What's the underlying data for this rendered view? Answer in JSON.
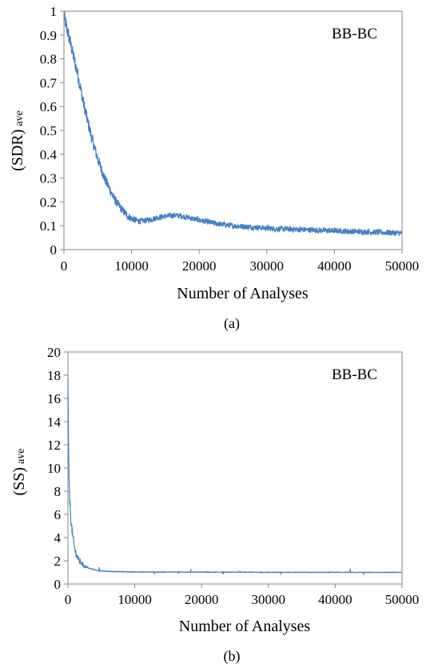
{
  "chart_data": [
    {
      "type": "line",
      "annotation": "BB-BC",
      "xlabel": "Number of Analyses",
      "ylabel_main": "(SDR)",
      "ylabel_sub": "ave",
      "caption": "(a)",
      "xlim": [
        0,
        50000
      ],
      "ylim": [
        0,
        1
      ],
      "xticks": [
        0,
        10000,
        20000,
        30000,
        40000,
        50000
      ],
      "yticks": [
        0,
        0.1,
        0.2,
        0.3,
        0.4,
        0.5,
        0.6,
        0.7,
        0.8,
        0.9,
        1
      ],
      "xtick_labels": [
        "0",
        "10000",
        "20000",
        "30000",
        "40000",
        "50000"
      ],
      "ytick_labels": [
        "0",
        "0.1",
        "0.2",
        "0.3",
        "0.4",
        "0.5",
        "0.6",
        "0.7",
        "0.8",
        "0.9",
        "1"
      ],
      "grid": false,
      "color": "#4a7ebb",
      "series": [
        {
          "x": [
            0,
            500,
            1000,
            1500,
            2000,
            2500,
            3000,
            3500,
            4000,
            4500,
            5000,
            5500,
            6000,
            6500,
            7000,
            7500,
            8000,
            8500,
            9000,
            9500,
            10000,
            10500,
            11000,
            11500,
            12000,
            12500,
            13000,
            13500,
            14000,
            14500,
            15000,
            15500,
            16000,
            16500,
            17000,
            17500,
            18000,
            18500,
            19000,
            19500,
            20000,
            21000,
            22000,
            23000,
            24000,
            25000,
            26000,
            27000,
            28000,
            29000,
            30000,
            31000,
            32000,
            33000,
            34000,
            35000,
            36000,
            37000,
            38000,
            39000,
            40000,
            41000,
            42000,
            43000,
            44000,
            45000,
            46000,
            47000,
            48000,
            49000,
            50000
          ],
          "y": [
            0.98,
            0.92,
            0.86,
            0.8,
            0.74,
            0.67,
            0.6,
            0.54,
            0.48,
            0.43,
            0.38,
            0.34,
            0.3,
            0.27,
            0.24,
            0.21,
            0.19,
            0.17,
            0.155,
            0.14,
            0.13,
            0.125,
            0.12,
            0.12,
            0.122,
            0.125,
            0.128,
            0.132,
            0.135,
            0.138,
            0.14,
            0.142,
            0.143,
            0.143,
            0.142,
            0.14,
            0.137,
            0.134,
            0.13,
            0.127,
            0.124,
            0.118,
            0.112,
            0.107,
            0.103,
            0.1,
            0.098,
            0.096,
            0.094,
            0.092,
            0.09,
            0.088,
            0.087,
            0.086,
            0.085,
            0.084,
            0.083,
            0.082,
            0.081,
            0.08,
            0.079,
            0.078,
            0.077,
            0.076,
            0.075,
            0.074,
            0.073,
            0.072,
            0.071,
            0.07,
            0.069
          ]
        }
      ]
    },
    {
      "type": "line",
      "annotation": "BB-BC",
      "xlabel": "Number of Analyses",
      "ylabel_main": "(SS)",
      "ylabel_sub": "ave",
      "caption": "(b)",
      "xlim": [
        0,
        50000
      ],
      "ylim": [
        0,
        20
      ],
      "xticks": [
        0,
        10000,
        20000,
        30000,
        40000,
        50000
      ],
      "yticks": [
        0,
        2,
        4,
        6,
        8,
        10,
        12,
        14,
        16,
        18,
        20
      ],
      "xtick_labels": [
        "0",
        "10000",
        "20000",
        "30000",
        "40000",
        "50000"
      ],
      "ytick_labels": [
        "0",
        "2",
        "4",
        "6",
        "8",
        "10",
        "12",
        "14",
        "16",
        "18",
        "20"
      ],
      "grid": false,
      "color": "#4a7ebb",
      "series": [
        {
          "x": [
            0,
            50,
            100,
            150,
            200,
            300,
            400,
            500,
            700,
            900,
            1100,
            1400,
            1700,
            2000,
            2500,
            3000,
            3500,
            4000,
            4500,
            5000,
            6000,
            7000,
            8000,
            10000,
            15000,
            20000,
            25000,
            30000,
            35000,
            40000,
            45000,
            50000
          ],
          "y": [
            17.5,
            14,
            11.5,
            9.5,
            8.2,
            7.0,
            6.0,
            5.2,
            4.2,
            3.4,
            2.8,
            2.3,
            2.0,
            1.8,
            1.55,
            1.4,
            1.3,
            1.22,
            1.17,
            1.13,
            1.09,
            1.07,
            1.06,
            1.04,
            1.03,
            1.02,
            1.02,
            1.01,
            1.01,
            1.01,
            1.0,
            1.0
          ]
        }
      ]
    }
  ]
}
